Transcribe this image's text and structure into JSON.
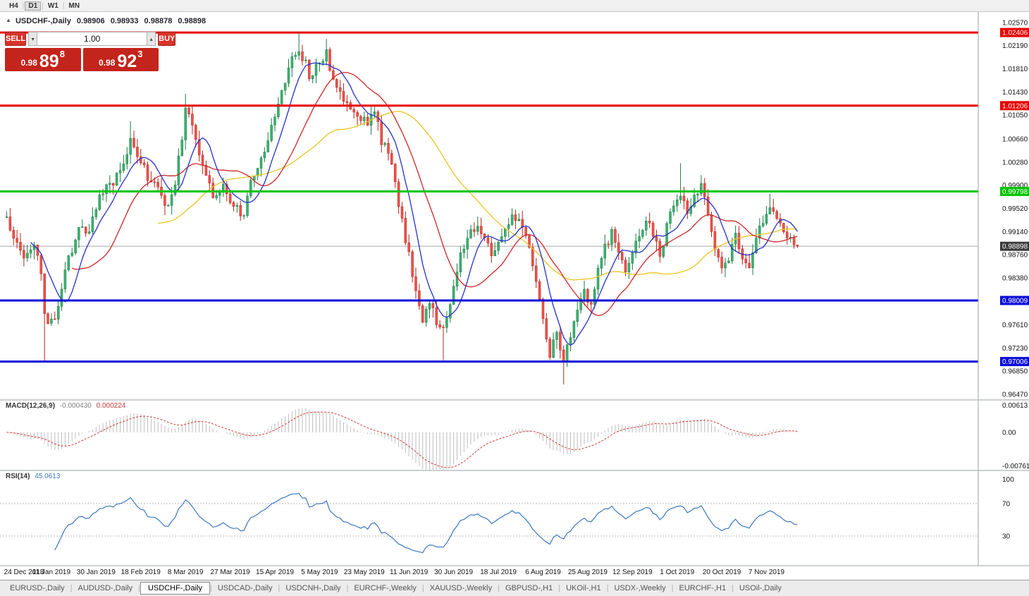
{
  "toolbar": {
    "timeframes": [
      "H4",
      "D1",
      "W1",
      "MN"
    ],
    "active_timeframe": "D1"
  },
  "chart_header": {
    "symbol": "USDCHF-,Daily",
    "open": "0.98906",
    "high": "0.98933",
    "low": "0.98878",
    "close": "0.98898"
  },
  "one_click": {
    "sell_label": "SELL",
    "buy_label": "BUY",
    "volume": "1.00",
    "sell_price_small": "0.98",
    "sell_price_big": "89",
    "sell_price_sup": "8",
    "buy_price_small": "0.98",
    "buy_price_big": "92",
    "buy_price_sup": "3"
  },
  "indicators": {
    "macd_label": "MACD(12,26,9)",
    "macd_value1": "-0.000430",
    "macd_value2": "0.000224",
    "rsi_label": "RSI(14)",
    "rsi_value": "45.0613"
  },
  "tabs": [
    {
      "label": "EURUSD-,Daily",
      "active": false
    },
    {
      "label": "AUDUSD-,Daily",
      "active": false
    },
    {
      "label": "USDCHF-,Daily",
      "active": true
    },
    {
      "label": "USDCAD-,Daily",
      "active": false
    },
    {
      "label": "USDCNH-,Daily",
      "active": false
    },
    {
      "label": "EURCHF-,Weekly",
      "active": false
    },
    {
      "label": "XAUUSD-,Weekly",
      "active": false
    },
    {
      "label": "GBPUSD-,H1",
      "active": false
    },
    {
      "label": "UKOil-,H1",
      "active": false
    },
    {
      "label": "USDX-,Weekly",
      "active": false
    },
    {
      "label": "EURCHF-,H1",
      "active": false
    },
    {
      "label": "USOil-,Daily",
      "active": false
    }
  ],
  "chart_data": {
    "type": "candlestick",
    "symbol": "USDCHF-",
    "period": "Daily",
    "bar_count": 231,
    "bid_line": {
      "price": 0.98898,
      "label": "0.98898"
    },
    "price_axis_ticks": [
      1.0257,
      1.0219,
      1.0181,
      1.0143,
      1.0105,
      1.0066,
      1.0028,
      0.999,
      0.9952,
      0.9914,
      0.9876,
      0.9838,
      0.9761,
      0.9723,
      0.9685,
      0.9647
    ],
    "hlines": [
      {
        "price": 1.02406,
        "label": "1.02406",
        "color": "#e80000",
        "width": 3
      },
      {
        "price": 1.01206,
        "label": "1.01206",
        "color": "#e80000",
        "width": 3
      },
      {
        "price": 0.99798,
        "label": "0.99798",
        "color": "#00c400",
        "width": 3
      },
      {
        "price": 0.98009,
        "label": "0.98009",
        "color": "#0a0ad9",
        "width": 3
      },
      {
        "price": 0.97006,
        "label": "0.97006",
        "color": "#0a0ad9",
        "width": 3
      }
    ],
    "date_label_step": 13,
    "date_labels": [
      "24 Dec 2018",
      "11 Jan 2019",
      "30 Jan 2019",
      "18 Feb 2019",
      "8 Mar 2019",
      "27 Mar 2019",
      "15 Apr 2019",
      "5 May 2019",
      "23 May 2019",
      "11 Jun 2019",
      "30 Jun 2019",
      "18 Jul 2019",
      "6 Aug 2019",
      "25 Aug 2019",
      "12 Sep 2019",
      "1 Oct 2019",
      "20 Oct 2019",
      "7 Nov 2019"
    ],
    "moving_averages": [
      {
        "period": 8,
        "color": "#2331c8"
      },
      {
        "period": 20,
        "color": "#cf2626"
      },
      {
        "period": 45,
        "color": "#edc421"
      }
    ],
    "macd": {
      "fast": 12,
      "slow": 26,
      "signal": 9,
      "axis_ticks": [
        {
          "v": 0.00613,
          "label": "0.00613"
        },
        {
          "v": 0,
          "label": "0.00"
        },
        {
          "v": -0.0076125,
          "label": "-0.0076125"
        }
      ]
    },
    "rsi": {
      "period": 14,
      "levels": [
        70,
        30
      ],
      "axis_ticks": [
        100,
        70,
        30
      ]
    },
    "colors": {
      "up": "#3cb371",
      "up_edge": "#1d7a45",
      "down": "#f0524a",
      "down_edge": "#b3261e",
      "macd_hist": "#bdbdbd",
      "macd_signal": "#cf3b3b",
      "rsi_line": "#3c77c0",
      "bid_line": "#a6a6a6"
    },
    "close_waypoints": [
      [
        0,
        0.993
      ],
      [
        3,
        0.9895
      ],
      [
        5,
        0.9862
      ],
      [
        8,
        0.99
      ],
      [
        10,
        0.9848
      ],
      [
        11,
        0.9775
      ],
      [
        13,
        0.9762
      ],
      [
        15,
        0.9792
      ],
      [
        18,
        0.9868
      ],
      [
        21,
        0.9922
      ],
      [
        24,
        0.9912
      ],
      [
        27,
        0.9975
      ],
      [
        30,
        0.999
      ],
      [
        33,
        1.0012
      ],
      [
        36,
        1.0062
      ],
      [
        38,
        1.004
      ],
      [
        41,
        1.0005
      ],
      [
        44,
        0.998
      ],
      [
        47,
        0.9952
      ],
      [
        49,
        0.9992
      ],
      [
        52,
        1.0108
      ],
      [
        54,
        1.0088
      ],
      [
        57,
        1.002
      ],
      [
        60,
        0.9975
      ],
      [
        63,
        0.9987
      ],
      [
        66,
        0.996
      ],
      [
        69,
        0.9937
      ],
      [
        71,
        0.9995
      ],
      [
        74,
        1.003
      ],
      [
        77,
        1.0085
      ],
      [
        80,
        1.0148
      ],
      [
        83,
        1.0195
      ],
      [
        85,
        1.0218
      ],
      [
        88,
        1.0172
      ],
      [
        90,
        1.0185
      ],
      [
        93,
        1.0205
      ],
      [
        96,
        1.015
      ],
      [
        99,
        1.0126
      ],
      [
        102,
        1.0105
      ],
      [
        105,
        1.0092
      ],
      [
        107,
        1.011
      ],
      [
        109,
        1.0065
      ],
      [
        111,
        1.004
      ],
      [
        113,
        0.9992
      ],
      [
        115,
        0.993
      ],
      [
        117,
        0.9872
      ],
      [
        119,
        0.9822
      ],
      [
        121,
        0.9772
      ],
      [
        123,
        0.98
      ],
      [
        125,
        0.9762
      ],
      [
        127,
        0.9748
      ],
      [
        129,
        0.98
      ],
      [
        131,
        0.985
      ],
      [
        133,
        0.9892
      ],
      [
        136,
        0.9922
      ],
      [
        139,
        0.99
      ],
      [
        141,
        0.9882
      ],
      [
        143,
        0.9896
      ],
      [
        145,
        0.9915
      ],
      [
        147,
        0.994
      ],
      [
        150,
        0.992
      ],
      [
        152,
        0.989
      ],
      [
        154,
        0.984
      ],
      [
        156,
        0.9762
      ],
      [
        158,
        0.9716
      ],
      [
        160,
        0.9742
      ],
      [
        162,
        0.9706
      ],
      [
        164,
        0.9746
      ],
      [
        166,
        0.9786
      ],
      [
        168,
        0.9812
      ],
      [
        170,
        0.9792
      ],
      [
        172,
        0.9846
      ],
      [
        174,
        0.9886
      ],
      [
        176,
        0.9912
      ],
      [
        178,
        0.9882
      ],
      [
        180,
        0.9856
      ],
      [
        182,
        0.9876
      ],
      [
        184,
        0.9912
      ],
      [
        186,
        0.9936
      ],
      [
        188,
        0.9906
      ],
      [
        190,
        0.9876
      ],
      [
        192,
        0.9922
      ],
      [
        194,
        0.9956
      ],
      [
        196,
        0.9976
      ],
      [
        198,
        0.995
      ],
      [
        200,
        0.9976
      ],
      [
        202,
        0.9988
      ],
      [
        204,
        0.994
      ],
      [
        206,
        0.989
      ],
      [
        208,
        0.9846
      ],
      [
        210,
        0.9872
      ],
      [
        212,
        0.9906
      ],
      [
        214,
        0.9876
      ],
      [
        216,
        0.9846
      ],
      [
        218,
        0.9896
      ],
      [
        220,
        0.9936
      ],
      [
        222,
        0.996
      ],
      [
        224,
        0.9936
      ],
      [
        226,
        0.9912
      ],
      [
        228,
        0.9896
      ],
      [
        230,
        0.98898
      ]
    ],
    "wick_overrides": [
      {
        "i": 11,
        "low": 0.9701
      },
      {
        "i": 36,
        "high": 1.0095
      },
      {
        "i": 52,
        "high": 1.014
      },
      {
        "i": 85,
        "high": 1.0242
      },
      {
        "i": 93,
        "high": 1.023
      },
      {
        "i": 127,
        "low": 0.9703
      },
      {
        "i": 162,
        "low": 0.9663
      },
      {
        "i": 196,
        "high": 1.0026
      },
      {
        "i": 222,
        "high": 0.9976
      }
    ]
  }
}
